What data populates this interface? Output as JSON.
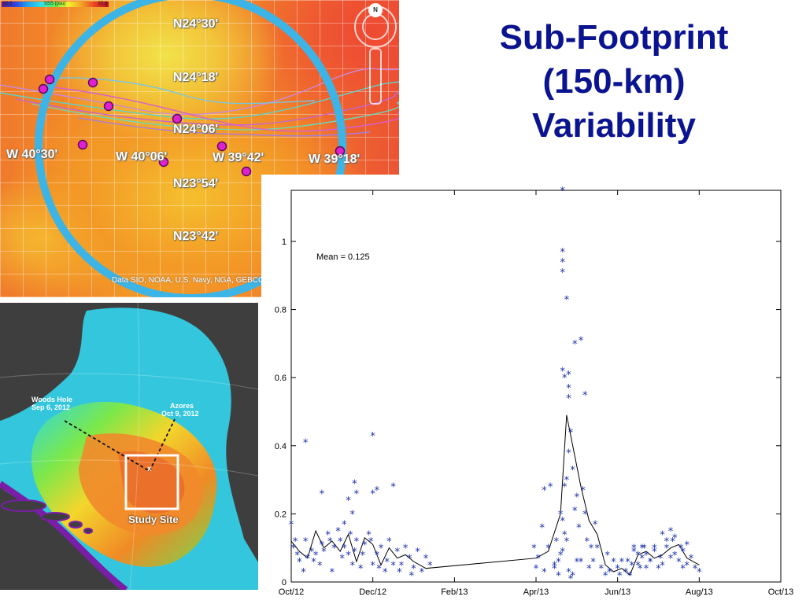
{
  "title": {
    "lines": [
      "Sub-Footprint",
      "(150-km)",
      "Variability"
    ],
    "color": "#0b1490"
  },
  "salinity_map": {
    "colorbar": {
      "min_label": "36.5",
      "mid_label": "SSS (psu)",
      "max_label": "37.6"
    },
    "grid_labels": {
      "lat_1": "N24°30'",
      "lat_2": "N24°18'",
      "lat_3": "N24°06'",
      "lat_4": "N23°54'",
      "lat_5": "N23°42'",
      "lon_1": "W 40°30'",
      "lon_2": "W 40°06'",
      "lon_3": "W 39°42'",
      "lon_4": "W 39°18'"
    },
    "credit": "Data SIO, NOAA, U.S. Navy, NGA, GEBCO",
    "north_badge": "N",
    "footprint_circle_color": "#3cb4e6",
    "marker_color": "#e020d0"
  },
  "ocean_map": {
    "woods_hole_label": "Woods Hole",
    "woods_hole_date": "Sep 6, 2012",
    "azores_label": "Azores",
    "azores_date": "Oct 9, 2012",
    "study_site_label": "Study Site",
    "site_marker": "x"
  },
  "chart_data": {
    "type": "scatter",
    "annotation": "Mean = 0.125",
    "x_ticks": [
      "Oct/12",
      "Dec/12",
      "Feb/13",
      "Apr/13",
      "Jun/13",
      "Aug/13",
      "Oct/13"
    ],
    "y_ticks": [
      "0",
      "0.2",
      "0.4",
      "0.6",
      "0.8",
      "1"
    ],
    "ylim": [
      0,
      1.15
    ],
    "xlim": [
      0,
      12
    ],
    "marker": "*",
    "marker_color": "#1a2fa8",
    "line_color": "#000000",
    "scatter_x": [
      0.0,
      0.05,
      0.1,
      0.15,
      0.2,
      0.3,
      0.35,
      0.4,
      0.5,
      0.55,
      0.6,
      0.7,
      0.75,
      0.8,
      0.9,
      0.95,
      1.0,
      1.05,
      1.15,
      1.2,
      1.25,
      1.3,
      1.4,
      1.45,
      1.5,
      1.55,
      1.6,
      1.7,
      1.75,
      1.8,
      1.9,
      1.95,
      2.0,
      2.1,
      2.15,
      2.2,
      2.3,
      2.35,
      2.4,
      2.5,
      2.6,
      2.65,
      2.7,
      2.8,
      2.9,
      2.95,
      3.0,
      3.1,
      3.2,
      3.3,
      3.4,
      0.35,
      0.75,
      1.4,
      1.55,
      1.6,
      2.0,
      2.1,
      2.5,
      2.0,
      1.3,
      1.5,
      5.95,
      6.0,
      6.05,
      6.15,
      6.2,
      6.3,
      6.35,
      6.45,
      6.5,
      6.55,
      6.6,
      6.65,
      6.7,
      6.75,
      6.8,
      6.85,
      6.9,
      6.95,
      7.0,
      7.05,
      7.1,
      7.15,
      7.2,
      7.25,
      7.3,
      7.35,
      7.4,
      7.45,
      7.5,
      6.65,
      6.65,
      6.65,
      6.65,
      6.75,
      6.65,
      6.7,
      6.8,
      6.8,
      6.8,
      6.95,
      7.1,
      7.2,
      6.65,
      6.7,
      6.75,
      6.2,
      6.45,
      6.55,
      6.6,
      6.8,
      6.9,
      7.0,
      6.85,
      7.6,
      7.7,
      7.75,
      7.8,
      7.9,
      8.0,
      8.05,
      8.1,
      8.2,
      8.3,
      8.35,
      8.4,
      8.5,
      8.55,
      8.6,
      8.65,
      8.7,
      8.8,
      8.9,
      9.0,
      9.05,
      9.1,
      9.2,
      9.3,
      9.35,
      9.4,
      9.5,
      9.55,
      9.6,
      9.7,
      9.8,
      9.9,
      10.0,
      8.25,
      8.4,
      8.5,
      8.6,
      8.7,
      8.8,
      8.9,
      9.1,
      9.2,
      9.3,
      9.4,
      9.6,
      9.7
    ],
    "scatter_y": [
      0.17,
      0.1,
      0.12,
      0.08,
      0.06,
      0.03,
      0.12,
      0.07,
      0.09,
      0.06,
      0.08,
      0.05,
      0.11,
      0.09,
      0.14,
      0.12,
      0.03,
      0.1,
      0.15,
      0.12,
      0.07,
      0.1,
      0.08,
      0.14,
      0.05,
      0.09,
      0.12,
      0.04,
      0.08,
      0.11,
      0.14,
      0.12,
      0.05,
      0.08,
      0.04,
      0.1,
      0.03,
      0.06,
      0.12,
      0.05,
      0.09,
      0.03,
      0.05,
      0.1,
      0.07,
      0.02,
      0.04,
      0.09,
      0.03,
      0.07,
      0.05,
      0.41,
      0.26,
      0.24,
      0.29,
      0.26,
      0.43,
      0.27,
      0.28,
      0.26,
      0.17,
      0.2,
      0.1,
      0.04,
      0.07,
      0.16,
      0.03,
      0.1,
      0.28,
      0.04,
      0.12,
      0.06,
      0.2,
      0.09,
      0.28,
      0.3,
      0.38,
      0.44,
      0.33,
      0.21,
      0.25,
      0.16,
      0.06,
      0.27,
      0.2,
      0.12,
      0.04,
      0.1,
      0.06,
      0.17,
      0.1,
      1.15,
      0.97,
      0.94,
      0.91,
      0.83,
      0.62,
      0.6,
      0.61,
      0.57,
      0.54,
      0.7,
      0.71,
      0.55,
      0.18,
      0.14,
      0.12,
      0.27,
      0.05,
      0.02,
      0.08,
      0.03,
      0.02,
      0.06,
      0.01,
      0.04,
      0.02,
      0.08,
      0.03,
      0.06,
      0.04,
      0.02,
      0.06,
      0.03,
      0.02,
      0.05,
      0.1,
      0.08,
      0.04,
      0.07,
      0.1,
      0.04,
      0.06,
      0.09,
      0.04,
      0.07,
      0.05,
      0.1,
      0.07,
      0.12,
      0.08,
      0.06,
      0.1,
      0.04,
      0.05,
      0.07,
      0.04,
      0.03,
      0.06,
      0.09,
      0.05,
      0.1,
      0.08,
      0.06,
      0.1,
      0.14,
      0.12,
      0.15,
      0.13,
      0.09,
      0.11
    ],
    "mean_line_x": [
      0.0,
      0.2,
      0.4,
      0.6,
      0.8,
      1.0,
      1.2,
      1.4,
      1.6,
      1.8,
      2.0,
      2.2,
      2.4,
      2.6,
      2.8,
      3.0,
      3.3,
      6.0,
      6.3,
      6.6,
      6.75,
      6.9,
      7.1,
      7.3,
      7.5,
      7.7,
      7.9,
      8.1,
      8.3,
      8.5,
      8.7,
      8.9,
      9.1,
      9.3,
      9.5,
      9.7,
      10.0
    ],
    "mean_line_y": [
      0.12,
      0.09,
      0.07,
      0.15,
      0.1,
      0.12,
      0.09,
      0.14,
      0.06,
      0.13,
      0.11,
      0.05,
      0.1,
      0.07,
      0.08,
      0.06,
      0.04,
      0.07,
      0.09,
      0.2,
      0.49,
      0.4,
      0.28,
      0.18,
      0.14,
      0.05,
      0.03,
      0.04,
      0.02,
      0.08,
      0.09,
      0.07,
      0.08,
      0.1,
      0.11,
      0.07,
      0.05
    ]
  }
}
